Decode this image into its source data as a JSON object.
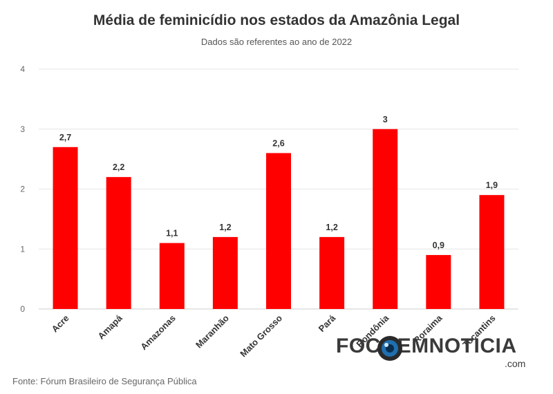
{
  "title": "Média de feminicídio nos estados da Amazônia Legal",
  "subtitle": "Dados são referentes ao ano de 2022",
  "source": "Fonte: Fórum Brasileiro de Segurança Pública",
  "watermark": {
    "text": "FOCOEMNOTICIA",
    "domain": ".com"
  },
  "colors": {
    "bar": "#ff0000",
    "grid": "#e6e6e6",
    "axis": "#cccccc"
  },
  "chart_data": {
    "type": "bar",
    "title": "Média de feminicídio nos estados da Amazônia Legal",
    "subtitle": "Dados são referentes ao ano de 2022",
    "categories": [
      "Acre",
      "Amapá",
      "Amazonas",
      "Maranhão",
      "Mato Grosso",
      "Pará",
      "Rondônia",
      "Roraima",
      "Tocantins"
    ],
    "values": [
      2.7,
      2.2,
      1.1,
      1.2,
      2.6,
      1.2,
      3,
      0.9,
      1.9
    ],
    "value_labels": [
      "2,7",
      "2,2",
      "1,1",
      "1,2",
      "2,6",
      "1,2",
      "3",
      "0,9",
      "1,9"
    ],
    "y_ticks": [
      "0",
      "1",
      "2",
      "3",
      "4"
    ],
    "ylim": [
      0,
      4
    ],
    "grid": true,
    "legend": "none"
  }
}
